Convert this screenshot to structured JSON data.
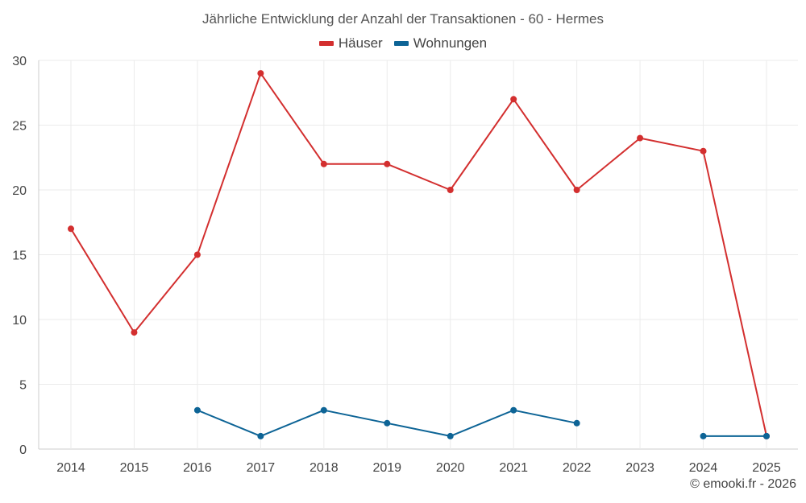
{
  "chart_data": {
    "type": "line",
    "title": "Jährliche Entwicklung der Anzahl der Transaktionen - 60 - Hermes",
    "categories": [
      "2014",
      "2015",
      "2016",
      "2017",
      "2018",
      "2019",
      "2020",
      "2021",
      "2022",
      "2023",
      "2024",
      "2025"
    ],
    "ylim": [
      0,
      30
    ],
    "yticks": [
      0,
      5,
      10,
      15,
      20,
      25,
      30
    ],
    "grid": true,
    "legend_position": "top-center",
    "series": [
      {
        "name": "Häuser",
        "color": "#d32f2f",
        "values": [
          17,
          9,
          15,
          29,
          22,
          22,
          20,
          27,
          20,
          24,
          23,
          1
        ]
      },
      {
        "name": "Wohnungen",
        "color": "#0d6496",
        "values": [
          null,
          null,
          3,
          1,
          3,
          2,
          1,
          3,
          2,
          null,
          1,
          1
        ]
      }
    ]
  },
  "footer": {
    "copyright": "© emooki.fr - 2026"
  }
}
